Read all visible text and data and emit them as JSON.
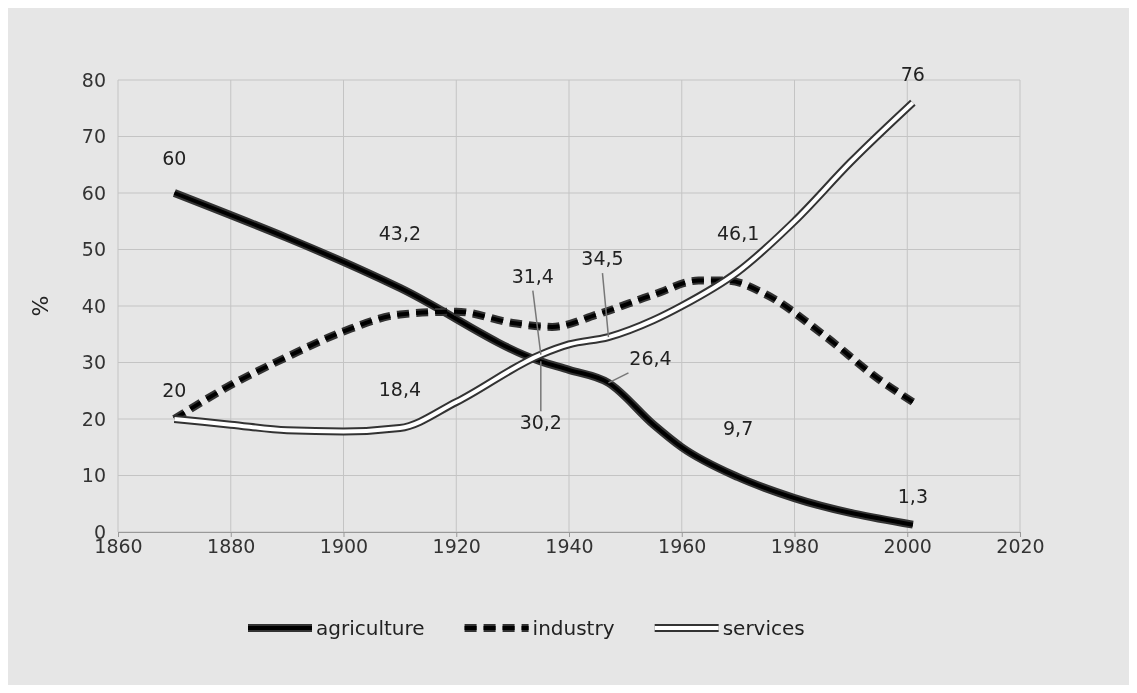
{
  "chart_data": {
    "type": "line",
    "ylabel": "%",
    "xlim": [
      1860,
      2020
    ],
    "xticks": [
      1860,
      1880,
      1900,
      1920,
      1940,
      1960,
      1980,
      2000,
      2020
    ],
    "ylim": [
      0,
      80
    ],
    "yticks": [
      0,
      10,
      20,
      30,
      40,
      50,
      60,
      70,
      80
    ],
    "grid": true,
    "legend": "bottom",
    "series": [
      {
        "name": "agriculture",
        "color": "#000000",
        "line_style": "solid",
        "x": [
          1870,
          1910,
          1935,
          1940,
          1947,
          1955,
          1960,
          1970,
          1980,
          2001
        ],
        "values": [
          60,
          43.2,
          30.2,
          28.7,
          26.4,
          19,
          15,
          9.7,
          6,
          1.3
        ]
      },
      {
        "name": "industry",
        "color": "#000000",
        "line_style": "dashed",
        "x": [
          1870,
          1880,
          1890,
          1900,
          1910,
          1920,
          1930,
          1937,
          1945,
          1955,
          1963,
          1968,
          1975,
          1985,
          1995,
          2001
        ],
        "values": [
          20,
          26,
          31,
          35.5,
          38.5,
          39,
          37,
          36.3,
          38.5,
          42,
          44.5,
          44.5,
          42,
          35,
          27,
          23
        ]
      },
      {
        "name": "services",
        "color": "#ffffff",
        "line_style": "solid",
        "x": [
          1870,
          1880,
          1890,
          1900,
          1910,
          1920,
          1935,
          1940,
          1947,
          1955,
          1960,
          1970,
          1980,
          1990,
          2001
        ],
        "values": [
          20,
          19,
          18,
          17.8,
          18.4,
          23,
          31.4,
          33.2,
          34.5,
          37.5,
          40,
          46.1,
          55,
          65.5,
          76
        ]
      }
    ],
    "annotations": [
      {
        "text": "60",
        "x": 1870,
        "y": 60
      },
      {
        "text": "20",
        "x": 1870,
        "y": 20
      },
      {
        "text": "43,2",
        "x": 1910,
        "y": 43.2
      },
      {
        "text": "18,4",
        "x": 1910,
        "y": 18.4
      },
      {
        "text": "31,4",
        "x": 1935,
        "y": 31.4
      },
      {
        "text": "30,2",
        "x": 1935,
        "y": 30.2
      },
      {
        "text": "34,5",
        "x": 1947,
        "y": 34.5
      },
      {
        "text": "26,4",
        "x": 1947,
        "y": 26.4
      },
      {
        "text": "46,1",
        "x": 1970,
        "y": 46.1
      },
      {
        "text": "9,7",
        "x": 1970,
        "y": 9.7
      },
      {
        "text": "1,3",
        "x": 2001,
        "y": 1.3
      },
      {
        "text": "76",
        "x": 2001,
        "y": 76
      }
    ]
  }
}
